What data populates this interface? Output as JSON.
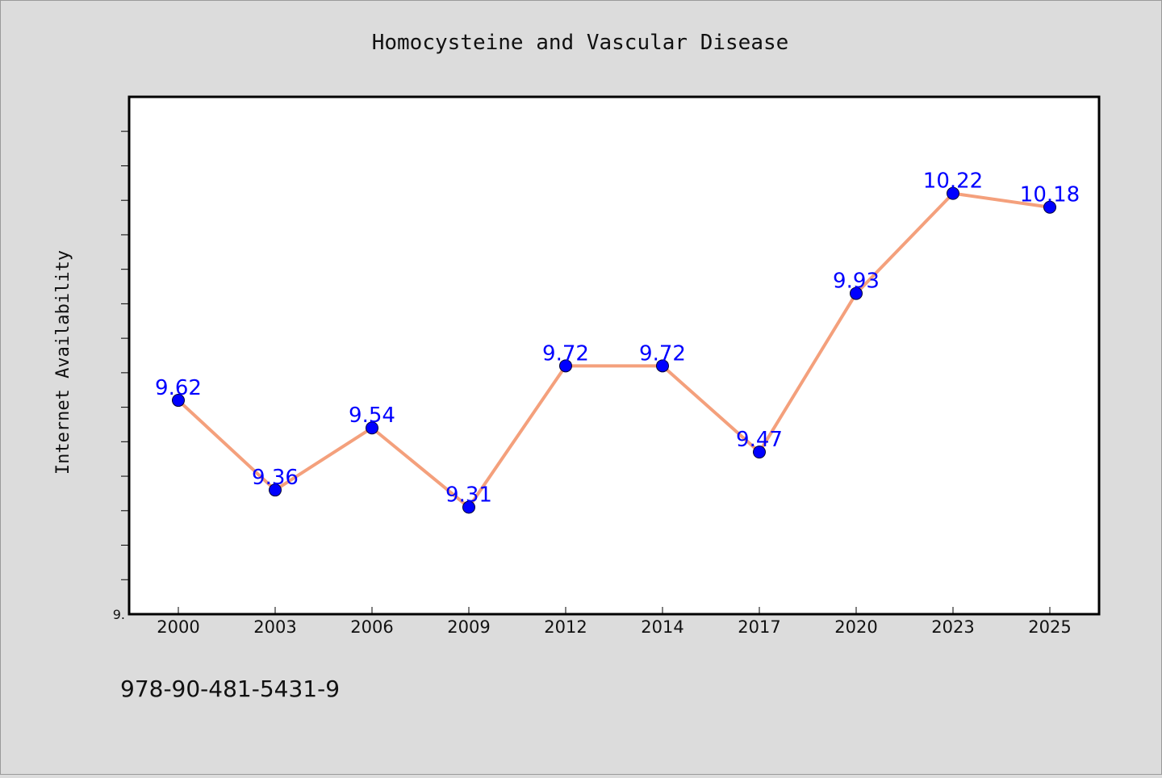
{
  "chart_data": {
    "type": "line",
    "title": "Homocysteine and Vascular Disease",
    "xlabel": "",
    "ylabel": "Internet Availability",
    "categories": [
      "2000",
      "2003",
      "2006",
      "2009",
      "2012",
      "2014",
      "2017",
      "2020",
      "2023",
      "2025"
    ],
    "series": [
      {
        "values": [
          9.62,
          9.36,
          9.54,
          9.31,
          9.72,
          9.72,
          9.47,
          9.93,
          10.22,
          10.18
        ]
      }
    ],
    "data_labels": [
      "9.62",
      "9.36",
      "9.54",
      "9.31",
      "9.72",
      "9.72",
      "9.47",
      "9.93",
      "10.22",
      "10.18"
    ],
    "ylim": [
      9.0,
      10.5
    ],
    "y_tick_label": "9.",
    "grid": false,
    "legend": "none",
    "colors": {
      "line": "#f4a07c",
      "marker": "#0000ff",
      "data_label": "#0000ff",
      "background": "#dcdcdc",
      "plot_background": "#ffffff"
    }
  },
  "footer": {
    "isbn": "978-90-481-5431-9"
  }
}
